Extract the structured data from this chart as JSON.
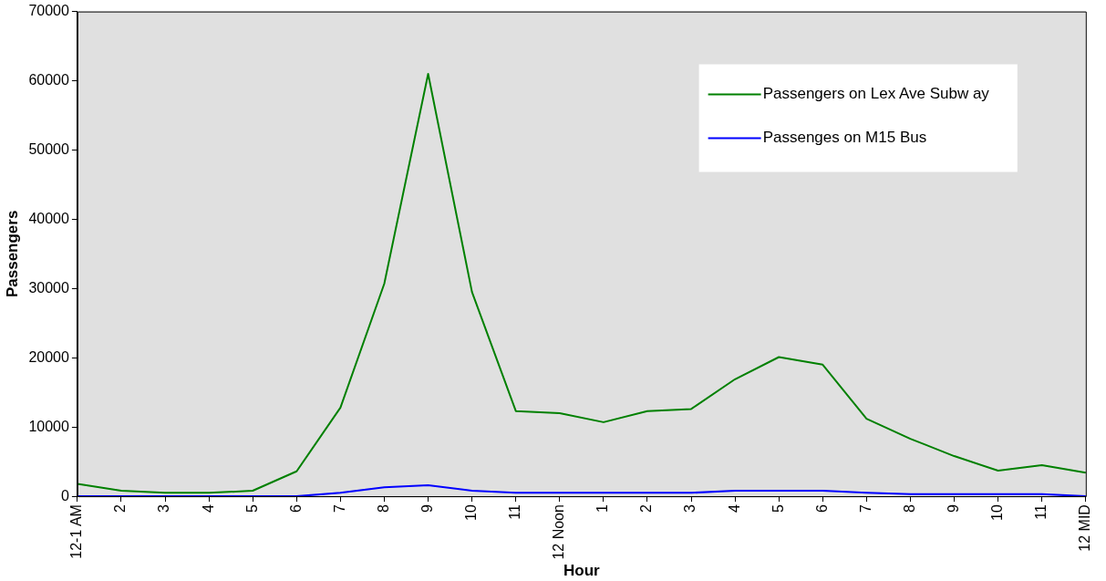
{
  "chart_data": {
    "type": "line",
    "xlabel": "Hour",
    "ylabel": "Passengers",
    "categories": [
      "12-1 AM",
      "2",
      "3",
      "4",
      "5",
      "6",
      "7",
      "8",
      "9",
      "10",
      "11",
      "12 Noon",
      "1",
      "2",
      "3",
      "4",
      "5",
      "6",
      "7",
      "8",
      "9",
      "10",
      "11",
      "12 MID"
    ],
    "series": [
      {
        "name": "Passengers on Lex Ave Subw ay",
        "color": "#008000",
        "values": [
          1800,
          800,
          500,
          500,
          800,
          3600,
          12800,
          30700,
          61000,
          29500,
          12300,
          12000,
          10700,
          12300,
          12600,
          16900,
          20100,
          19000,
          11200,
          8300,
          5800,
          3700,
          4500,
          3400
        ]
      },
      {
        "name": "Passenges on M15 Bus",
        "color": "#0000ff",
        "values": [
          0,
          0,
          0,
          0,
          0,
          0,
          500,
          1300,
          1600,
          800,
          500,
          500,
          500,
          500,
          500,
          800,
          800,
          800,
          500,
          300,
          300,
          300,
          300,
          0
        ]
      }
    ],
    "ylim": [
      0,
      70000
    ],
    "yticks": [
      0,
      10000,
      20000,
      30000,
      40000,
      50000,
      60000,
      70000
    ],
    "grid": false,
    "legend": "top right",
    "marker": "none",
    "line_style": "solid"
  }
}
